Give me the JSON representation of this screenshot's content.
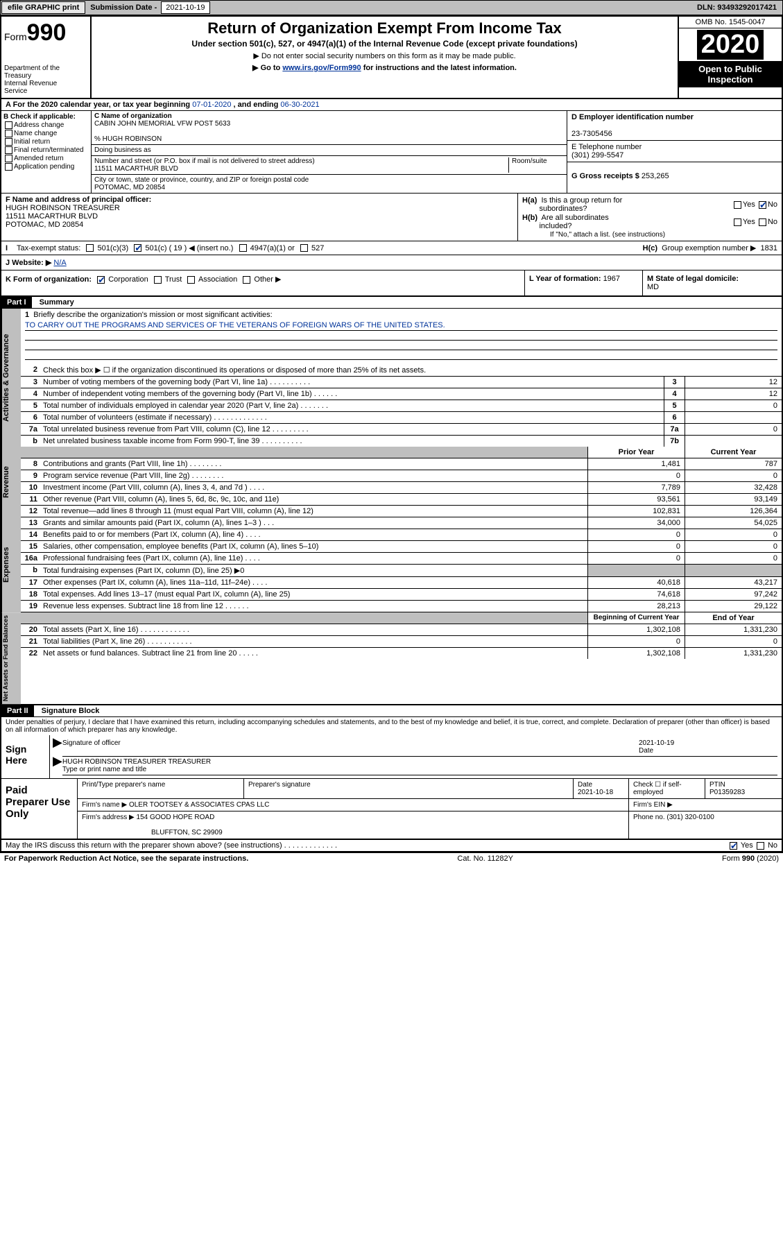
{
  "topbar": {
    "efile": "efile GRAPHIC print",
    "sub_label": "Submission Date -",
    "sub_date": "2021-10-19",
    "dln": "DLN: 93493292017421"
  },
  "header": {
    "form_word": "Form",
    "form_no": "990",
    "dept": "Department of the Treasury\nInternal Revenue Service",
    "title": "Return of Organization Exempt From Income Tax",
    "sub1": "Under section 501(c), 527, or 4947(a)(1) of the Internal Revenue Code (except private foundations)",
    "sub2": "▶ Do not enter social security numbers on this form as it may be made public.",
    "sub3_pre": "▶ Go to ",
    "sub3_link": "www.irs.gov/Form990",
    "sub3_post": " for instructions and the latest information.",
    "omb": "OMB No. 1545-0047",
    "year": "2020",
    "open": "Open to Public Inspection"
  },
  "taxyear": {
    "label": "A For the 2020 calendar year, or tax year beginning ",
    "begin": "07-01-2020",
    "mid": " , and ending ",
    "end": "06-30-2021"
  },
  "boxB": {
    "label": "B Check if applicable:",
    "items": [
      "Address change",
      "Name change",
      "Initial return",
      "Final return/terminated",
      "Amended return",
      "Application pending"
    ]
  },
  "boxC": {
    "name_label": "C Name of organization",
    "name": "CABIN JOHN MEMORIAL VFW POST 5633",
    "care_of": "% HUGH ROBINSON",
    "dba_label": "Doing business as",
    "street_label": "Number and street (or P.O. box if mail is not delivered to street address)",
    "room_label": "Room/suite",
    "street": "11511 MACARTHUR BLVD",
    "city_label": "City or town, state or province, country, and ZIP or foreign postal code",
    "city": "POTOMAC, MD  20854"
  },
  "boxD": {
    "label": "D Employer identification number",
    "val": "23-7305456"
  },
  "boxE": {
    "label": "E Telephone number",
    "val": "(301) 299-5547"
  },
  "boxG": {
    "label": "G Gross receipts $ ",
    "val": "253,265"
  },
  "boxF": {
    "label": "F Name and address of principal officer:",
    "line1": "HUGH ROBINSON TREASURER",
    "line2": "11511 MACARTHUR BLVD",
    "line3": "POTOMAC, MD  20854"
  },
  "boxH": {
    "a_label": "H(a)  Is this a group return for subordinates?",
    "b_label": "H(b)  Are all subordinates included?",
    "b_note": "If \"No,\" attach a list. (see instructions)",
    "c_label": "H(c)  Group exemption number ▶ ",
    "c_val": "1831",
    "yes": "Yes",
    "no": "No"
  },
  "taxexempt": {
    "label": "Tax-exempt status:",
    "c3": "501(c)(3)",
    "c": "501(c) ( 19 ) ◀ (insert no.)",
    "a1": "4947(a)(1) or",
    "s527": "527"
  },
  "website": {
    "label": "J   Website: ▶ ",
    "val": "N/A"
  },
  "boxK": {
    "label": "K Form of organization:",
    "corp": "Corporation",
    "trust": "Trust",
    "assoc": "Association",
    "other": "Other ▶"
  },
  "boxL": {
    "label": "L Year of formation: ",
    "val": "1967"
  },
  "boxM": {
    "label": "M State of legal domicile:",
    "val": "MD"
  },
  "part1": {
    "tag": "Part I",
    "title": "Summary"
  },
  "mission": {
    "q": "1   Briefly describe the organization's mission or most significant activities:",
    "text": "TO CARRY OUT THE PROGRAMS AND SERVICES OF THE VETERANS OF FOREIGN WARS OF THE UNITED STATES."
  },
  "gov_lines": [
    {
      "n": "2",
      "t": "Check this box ▶ ☐  if the organization discontinued its operations or disposed of more than 25% of its net assets.",
      "box": "",
      "val": ""
    },
    {
      "n": "3",
      "t": "Number of voting members of the governing body (Part VI, line 1a)  .    .    .    .    .    .    .    .    .    .",
      "box": "3",
      "val": "12"
    },
    {
      "n": "4",
      "t": "Number of independent voting members of the governing body (Part VI, line 1b)   .    .    .    .    .    .",
      "box": "4",
      "val": "12"
    },
    {
      "n": "5",
      "t": "Total number of individuals employed in calendar year 2020 (Part V, line 2a)   .    .    .    .    .    .    .",
      "box": "5",
      "val": "0"
    },
    {
      "n": "6",
      "t": "Total number of volunteers (estimate if necessary)   .    .    .    .    .    .    .    .    .    .    .    .    .",
      "box": "6",
      "val": ""
    },
    {
      "n": "7a",
      "t": "Total unrelated business revenue from Part VIII, column (C), line 12   .    .    .    .    .    .    .    .    .",
      "box": "7a",
      "val": "0"
    },
    {
      "n": "b",
      "t": "Net unrelated business taxable income from Form 990-T, line 39   .    .    .    .    .    .    .    .    .    .",
      "box": "7b",
      "val": ""
    }
  ],
  "col_headers": {
    "prior": "Prior Year",
    "current": "Current Year",
    "begin": "Beginning of Current Year",
    "end": "End of Year"
  },
  "revenue": [
    {
      "n": "8",
      "t": "Contributions and grants (Part VIII, line 1h)   .    .    .    .    .    .    .    .",
      "p": "1,481",
      "c": "787"
    },
    {
      "n": "9",
      "t": "Program service revenue (Part VIII, line 2g)    .    .    .    .    .    .    .    .",
      "p": "0",
      "c": "0"
    },
    {
      "n": "10",
      "t": "Investment income (Part VIII, column (A), lines 3, 4, and 7d )   .    .    .    .",
      "p": "7,789",
      "c": "32,428"
    },
    {
      "n": "11",
      "t": "Other revenue (Part VIII, column (A), lines 5, 6d, 8c, 9c, 10c, and 11e)",
      "p": "93,561",
      "c": "93,149"
    },
    {
      "n": "12",
      "t": "Total revenue—add lines 8 through 11 (must equal Part VIII, column (A), line 12)",
      "p": "102,831",
      "c": "126,364"
    }
  ],
  "expenses": [
    {
      "n": "13",
      "t": "Grants and similar amounts paid (Part IX, column (A), lines 1–3 )   .    .    .",
      "p": "34,000",
      "c": "54,025"
    },
    {
      "n": "14",
      "t": "Benefits paid to or for members (Part IX, column (A), line 4)   .    .    .    .",
      "p": "0",
      "c": "0"
    },
    {
      "n": "15",
      "t": "Salaries, other compensation, employee benefits (Part IX, column (A), lines 5–10)",
      "p": "0",
      "c": "0"
    },
    {
      "n": "16a",
      "t": "Professional fundraising fees (Part IX, column (A), line 11e)   .    .    .    .",
      "p": "0",
      "c": "0"
    },
    {
      "n": "b",
      "t": "Total fundraising expenses (Part IX, column (D), line 25) ▶0",
      "p": "",
      "c": ""
    },
    {
      "n": "17",
      "t": "Other expenses (Part IX, column (A), lines 11a–11d, 11f–24e)   .    .    .    .",
      "p": "40,618",
      "c": "43,217"
    },
    {
      "n": "18",
      "t": "Total expenses. Add lines 13–17 (must equal Part IX, column (A), line 25)",
      "p": "74,618",
      "c": "97,242"
    },
    {
      "n": "19",
      "t": "Revenue less expenses. Subtract line 18 from line 12   .    .    .    .    .    .",
      "p": "28,213",
      "c": "29,122"
    }
  ],
  "netassets": [
    {
      "n": "20",
      "t": "Total assets (Part X, line 16)   .    .    .    .    .    .    .    .    .    .    .    .",
      "p": "1,302,108",
      "c": "1,331,230"
    },
    {
      "n": "21",
      "t": "Total liabilities (Part X, line 26)   .    .    .    .    .    .    .    .    .    .    .",
      "p": "0",
      "c": "0"
    },
    {
      "n": "22",
      "t": "Net assets or fund balances. Subtract line 21 from line 20   .    .    .    .    .",
      "p": "1,302,108",
      "c": "1,331,230"
    }
  ],
  "side_labels": {
    "gov": "Activities & Governance",
    "rev": "Revenue",
    "exp": "Expenses",
    "net": "Net Assets or Fund Balances"
  },
  "part2": {
    "tag": "Part II",
    "title": "Signature Block"
  },
  "sig_text": "Under penalties of perjury, I declare that I have examined this return, including accompanying schedules and statements, and to the best of my knowledge and belief, it is true, correct, and complete. Declaration of preparer (other than officer) is based on all information of which preparer has any knowledge.",
  "sign": {
    "here": "Sign Here",
    "off_label": "Signature of officer",
    "date_label": "Date",
    "date": "2021-10-19",
    "name": "HUGH ROBINSON TREASURER  TREASURER",
    "type_label": "Type or print name and title"
  },
  "prep": {
    "here": "Paid Preparer Use Only",
    "h1": "Print/Type preparer's name",
    "h2": "Preparer's signature",
    "h3": "Date",
    "date": "2021-10-18",
    "chk": "Check ☐ if self-employed",
    "ptin_label": "PTIN",
    "ptin": "P01359283",
    "firm_name_label": "Firm's name    ▶ ",
    "firm_name": "OLER TOOTSEY & ASSOCIATES CPAS LLC",
    "firm_ein_label": "Firm's EIN ▶",
    "firm_addr_label": "Firm's address ▶ ",
    "firm_addr1": "154 GOOD HOPE ROAD",
    "firm_addr2": "BLUFFTON, SC  29909",
    "phone_label": "Phone no. ",
    "phone": "(301) 320-0100"
  },
  "footer": {
    "discuss": "May the IRS discuss this return with the preparer shown above? (see instructions)   .    .    .    .    .    .    .    .    .    .    .    .    .",
    "yes": "Yes",
    "no": "No",
    "notice": "For Paperwork Reduction Act Notice, see the separate instructions.",
    "cat": "Cat. No. 11282Y",
    "formrev": "Form 990 (2020)"
  }
}
